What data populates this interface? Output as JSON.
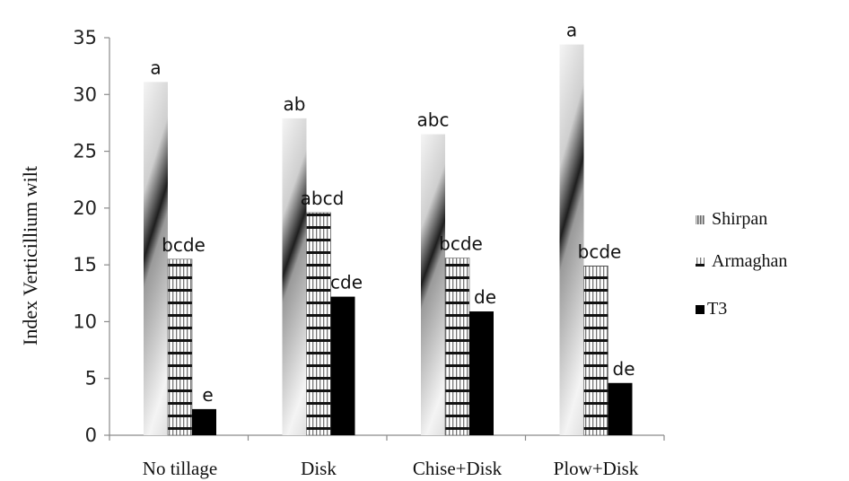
{
  "chart_data": {
    "type": "bar",
    "title": "",
    "xlabel": "",
    "ylabel": "Index Verticillium wilt",
    "ylim": [
      0,
      35
    ],
    "yticks": [
      0,
      5,
      10,
      15,
      20,
      25,
      30,
      35
    ],
    "grid": false,
    "legend_position": "right",
    "categories": [
      "No tillage",
      "Disk",
      "Chise+Disk",
      "Plow+Disk"
    ],
    "series": [
      {
        "name": "Shirpan",
        "values": [
          31.1,
          27.9,
          26.5,
          34.4
        ],
        "labels": [
          "a",
          "ab",
          "abc",
          "a"
        ]
      },
      {
        "name": "Armaghan",
        "values": [
          15.5,
          19.6,
          15.6,
          14.9
        ],
        "labels": [
          "bcde",
          "abcd",
          "bcde",
          "bcde"
        ]
      },
      {
        "name": "T3",
        "values": [
          2.3,
          12.2,
          10.9,
          4.6
        ],
        "labels": [
          "e",
          "cde",
          "de",
          "de"
        ]
      }
    ]
  }
}
